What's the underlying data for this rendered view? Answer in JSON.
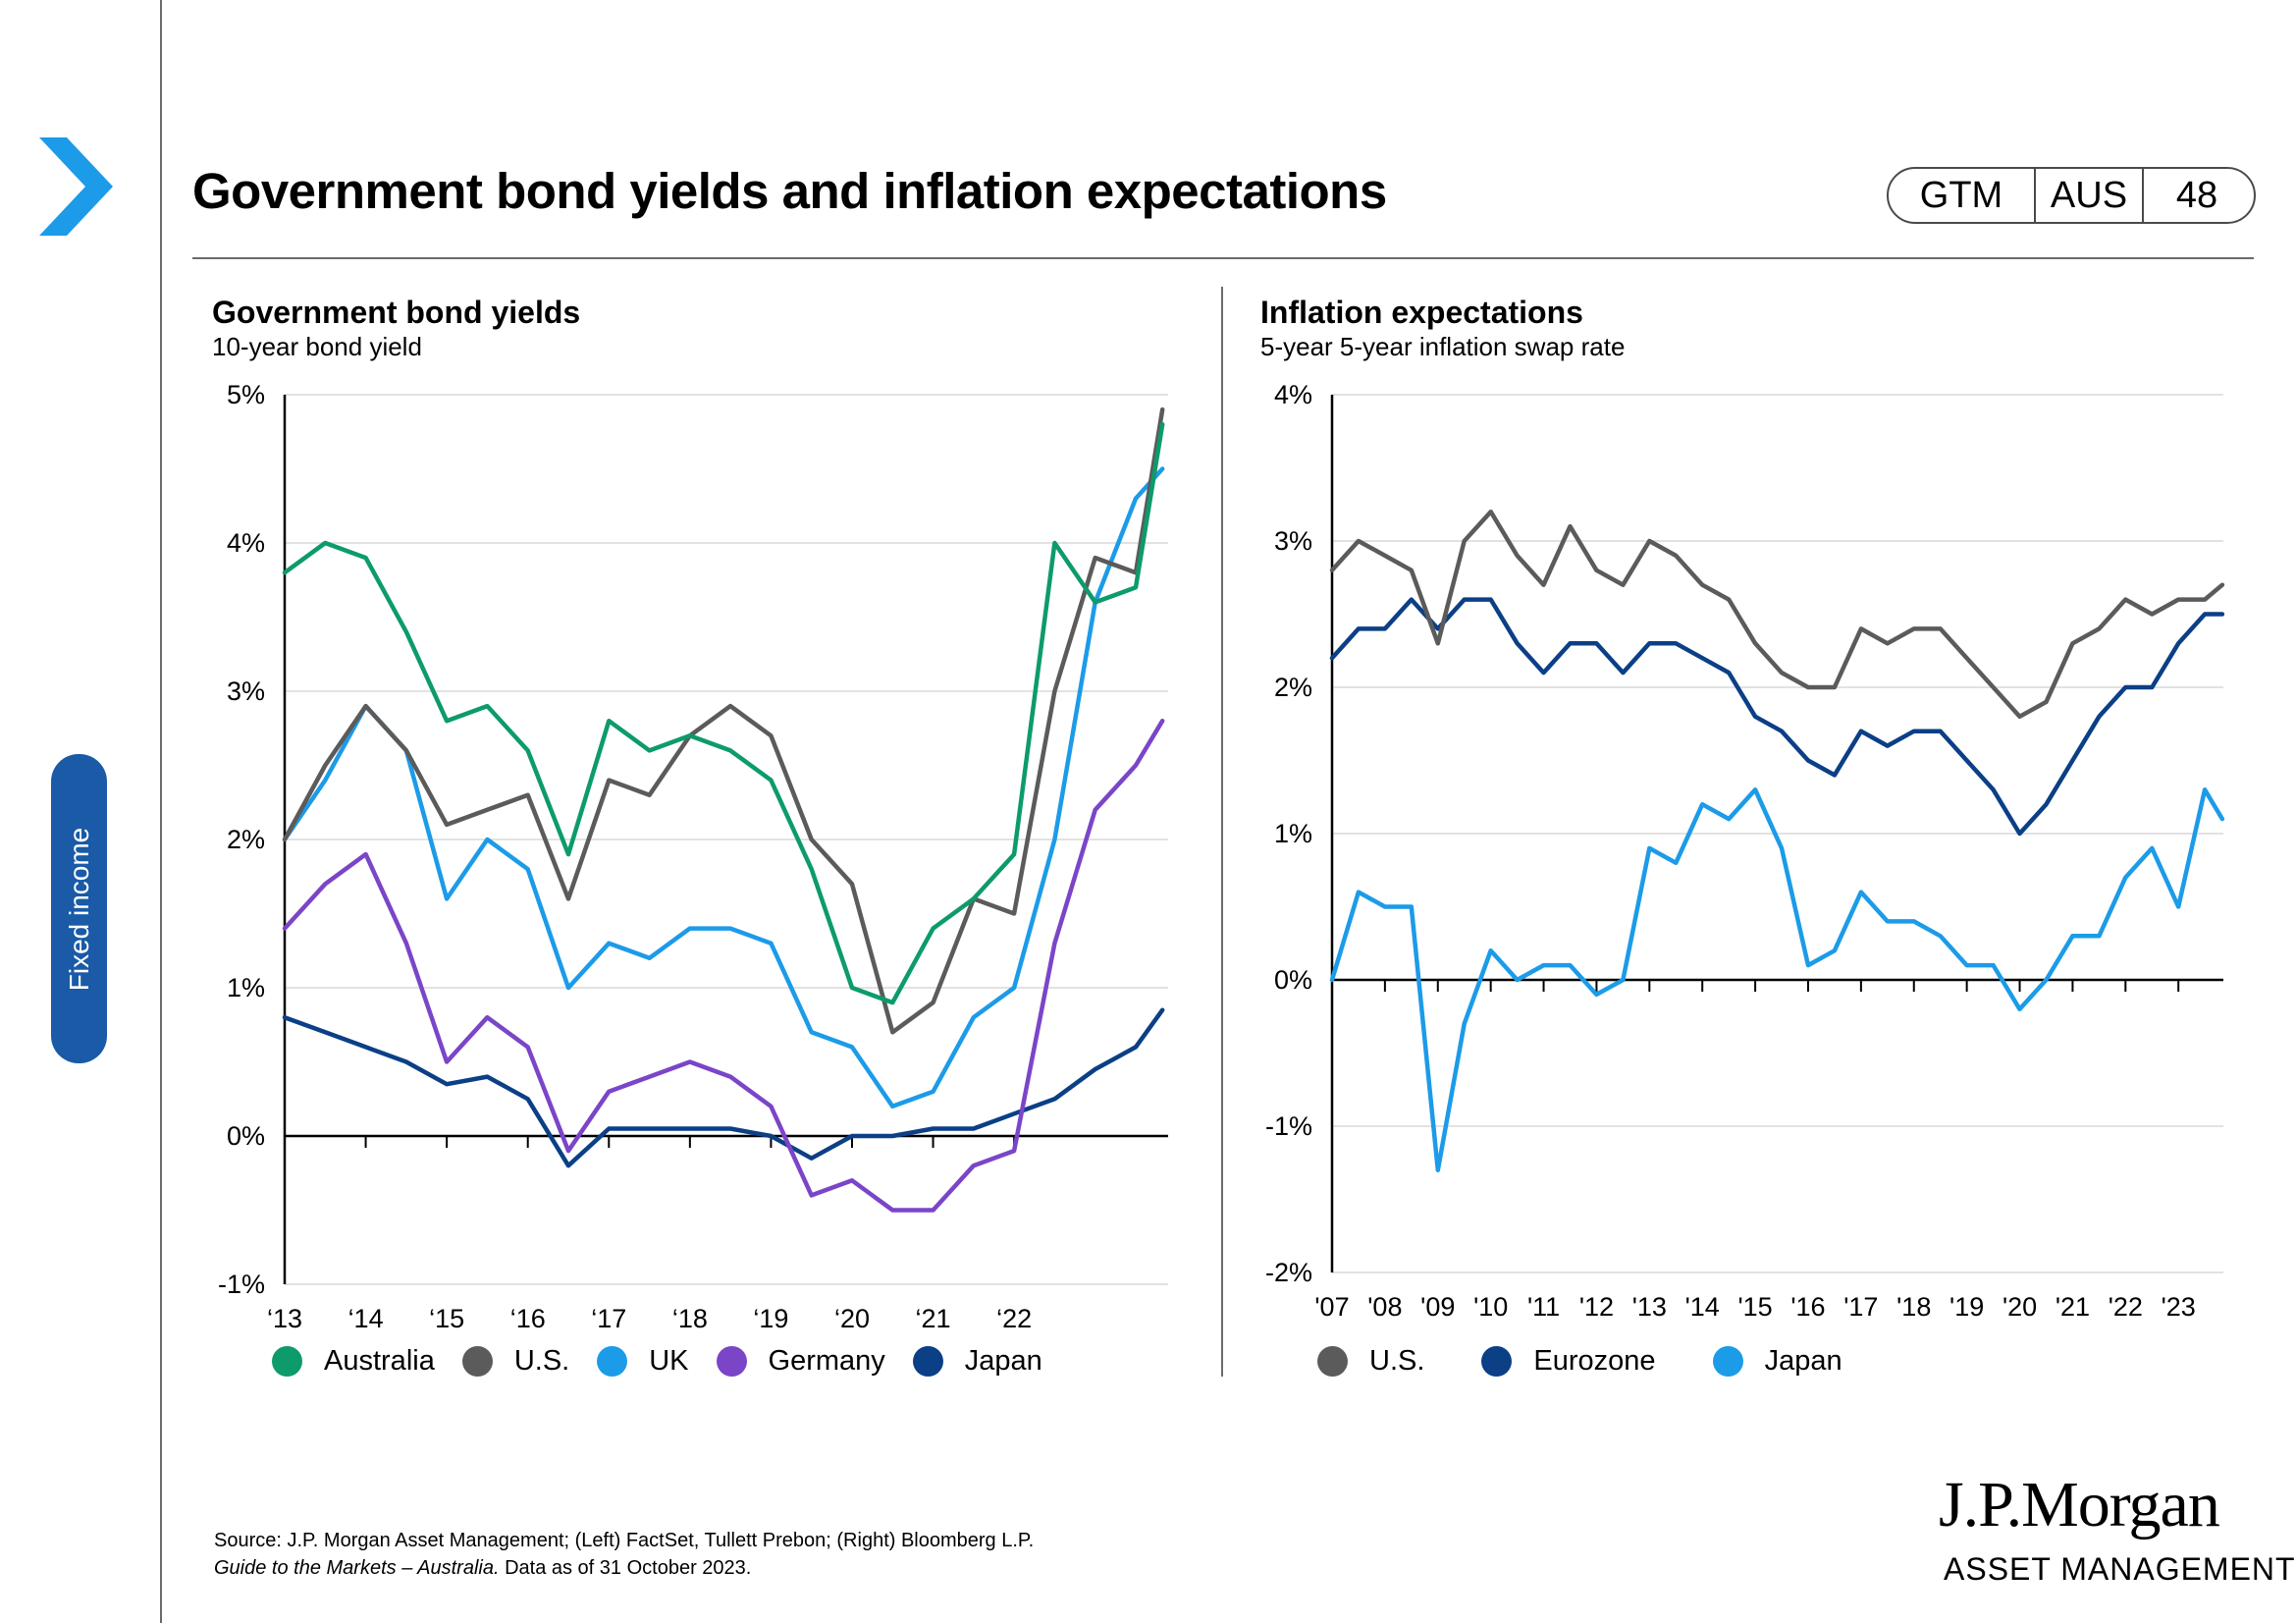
{
  "header": {
    "title": "Government bond yields and inflation expectations",
    "badge": [
      "GTM",
      "AUS",
      "48"
    ]
  },
  "sidebar": {
    "section_label": "Fixed income"
  },
  "colors": {
    "australia": "#0d9b6b",
    "us": "#5b5b5b",
    "uk": "#1c9be8",
    "germany": "#7b45c8",
    "japan_left": "#0b3f86",
    "eurozone": "#0b3f86",
    "japan_right": "#1c9be8"
  },
  "chart_data": [
    {
      "type": "line",
      "title": "Government bond yields",
      "subtitle": "10-year bond yield",
      "ylabel": "",
      "xlabel": "",
      "ylim": [
        -1,
        5
      ],
      "yticks": [
        "5%",
        "4%",
        "3%",
        "2%",
        "1%",
        "0%",
        "-1%"
      ],
      "xticks": [
        "‘13",
        "‘14",
        "‘15",
        "‘16",
        "‘17",
        "‘18",
        "‘19",
        "‘20",
        "‘21",
        "‘22"
      ],
      "x": [
        2013.0,
        2013.5,
        2014.0,
        2014.5,
        2015.0,
        2015.5,
        2016.0,
        2016.5,
        2017.0,
        2017.5,
        2018.0,
        2018.5,
        2019.0,
        2019.5,
        2020.0,
        2020.5,
        2021.0,
        2021.5,
        2022.0,
        2022.5,
        2023.0,
        2023.5,
        2023.83
      ],
      "series": [
        {
          "name": "Australia",
          "values": [
            3.8,
            4.0,
            3.9,
            3.4,
            2.8,
            2.9,
            2.6,
            1.9,
            2.8,
            2.6,
            2.7,
            2.6,
            2.4,
            1.8,
            1.0,
            0.9,
            1.4,
            1.6,
            1.9,
            4.0,
            3.6,
            3.7,
            4.8
          ]
        },
        {
          "name": "U.S.",
          "values": [
            2.0,
            2.5,
            2.9,
            2.6,
            2.1,
            2.2,
            2.3,
            1.6,
            2.4,
            2.3,
            2.7,
            2.9,
            2.7,
            2.0,
            1.7,
            0.7,
            0.9,
            1.6,
            1.5,
            3.0,
            3.9,
            3.8,
            4.9
          ]
        },
        {
          "name": "UK",
          "values": [
            2.0,
            2.4,
            2.9,
            2.6,
            1.6,
            2.0,
            1.8,
            1.0,
            1.3,
            1.2,
            1.4,
            1.4,
            1.3,
            0.7,
            0.6,
            0.2,
            0.3,
            0.8,
            1.0,
            2.0,
            3.6,
            4.3,
            4.5
          ]
        },
        {
          "name": "Germany",
          "values": [
            1.4,
            1.7,
            1.9,
            1.3,
            0.5,
            0.8,
            0.6,
            -0.1,
            0.3,
            0.4,
            0.5,
            0.4,
            0.2,
            -0.4,
            -0.3,
            -0.5,
            -0.5,
            -0.2,
            -0.1,
            1.3,
            2.2,
            2.5,
            2.8
          ]
        },
        {
          "name": "Japan",
          "values": [
            0.8,
            0.7,
            0.6,
            0.5,
            0.35,
            0.4,
            0.25,
            -0.2,
            0.05,
            0.05,
            0.05,
            0.05,
            0.0,
            -0.15,
            0.0,
            0.0,
            0.05,
            0.05,
            0.15,
            0.25,
            0.45,
            0.6,
            0.85
          ]
        }
      ]
    },
    {
      "type": "line",
      "title": "Inflation expectations",
      "subtitle": "5-year 5-year inflation swap rate",
      "ylabel": "",
      "xlabel": "",
      "ylim": [
        -2,
        4
      ],
      "yticks": [
        "4%",
        "3%",
        "2%",
        "1%",
        "0%",
        "-1%",
        "-2%"
      ],
      "xticks": [
        "'07",
        "'08",
        "'09",
        "'10",
        "'11",
        "'12",
        "'13",
        "'14",
        "'15",
        "'16",
        "'17",
        "'18",
        "'19",
        "'20",
        "'21",
        "'22",
        "'23"
      ],
      "x": [
        2007.0,
        2007.5,
        2008.0,
        2008.5,
        2009.0,
        2009.5,
        2010.0,
        2010.5,
        2011.0,
        2011.5,
        2012.0,
        2012.5,
        2013.0,
        2013.5,
        2014.0,
        2014.5,
        2015.0,
        2015.5,
        2016.0,
        2016.5,
        2017.0,
        2017.5,
        2018.0,
        2018.5,
        2019.0,
        2019.5,
        2020.0,
        2020.5,
        2021.0,
        2021.5,
        2022.0,
        2022.5,
        2023.0,
        2023.5,
        2023.83
      ],
      "series": [
        {
          "name": "U.S.",
          "values": [
            2.8,
            3.0,
            2.9,
            2.8,
            2.3,
            3.0,
            3.2,
            2.9,
            2.7,
            3.1,
            2.8,
            2.7,
            3.0,
            2.9,
            2.7,
            2.6,
            2.3,
            2.1,
            2.0,
            2.0,
            2.4,
            2.3,
            2.4,
            2.4,
            2.2,
            2.0,
            1.8,
            1.9,
            2.3,
            2.4,
            2.6,
            2.5,
            2.6,
            2.6,
            2.7
          ]
        },
        {
          "name": "Eurozone",
          "values": [
            2.2,
            2.4,
            2.4,
            2.6,
            2.4,
            2.6,
            2.6,
            2.3,
            2.1,
            2.3,
            2.3,
            2.1,
            2.3,
            2.3,
            2.2,
            2.1,
            1.8,
            1.7,
            1.5,
            1.4,
            1.7,
            1.6,
            1.7,
            1.7,
            1.5,
            1.3,
            1.0,
            1.2,
            1.5,
            1.8,
            2.0,
            2.0,
            2.3,
            2.5,
            2.5
          ]
        },
        {
          "name": "Japan",
          "values": [
            0.0,
            0.6,
            0.5,
            0.5,
            -1.3,
            -0.3,
            0.2,
            0.0,
            0.1,
            0.1,
            -0.1,
            0.0,
            0.9,
            0.8,
            1.2,
            1.1,
            1.3,
            0.9,
            0.1,
            0.2,
            0.6,
            0.4,
            0.4,
            0.3,
            0.1,
            0.1,
            -0.2,
            0.0,
            0.3,
            0.3,
            0.7,
            0.9,
            0.5,
            1.3,
            1.1
          ]
        }
      ]
    }
  ],
  "source": {
    "line1": "Source: J.P. Morgan Asset Management;  (Left) FactSet, Tullett Prebon; (Right) Bloomberg L.P.",
    "guide": "Guide to the Markets – Australia.",
    "date": " Data as of 31 October 2023."
  },
  "logo": {
    "name": "J.P.Morgan",
    "sub": "ASSET MANAGEMENT"
  }
}
